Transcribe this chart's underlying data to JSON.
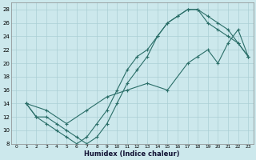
{
  "xlabel": "Humidex (Indice chaleur)",
  "bg_color": "#cce8ec",
  "line_color": "#2a6e68",
  "grid_color": "#aacfd4",
  "xlim": [
    -0.5,
    23.5
  ],
  "ylim": [
    8,
    29
  ],
  "xticks": [
    0,
    1,
    2,
    3,
    4,
    5,
    6,
    7,
    8,
    9,
    10,
    11,
    12,
    13,
    14,
    15,
    16,
    17,
    18,
    19,
    20,
    21,
    22,
    23
  ],
  "yticks": [
    8,
    10,
    12,
    14,
    16,
    18,
    20,
    22,
    24,
    26,
    28
  ],
  "line1_x": [
    1,
    2,
    3,
    4,
    5,
    6,
    7,
    8,
    9,
    10,
    11,
    12,
    13,
    14,
    15,
    16,
    17,
    18,
    19,
    20,
    21,
    22,
    23
  ],
  "line1_y": [
    14,
    12,
    11,
    10,
    9,
    8,
    9,
    11,
    13,
    16,
    19,
    21,
    22,
    24,
    26,
    27,
    28,
    28,
    26,
    25,
    24,
    23,
    21
  ],
  "line2_x": [
    1,
    2,
    3,
    4,
    5,
    6,
    7,
    8,
    9,
    10,
    11,
    12,
    13,
    14,
    15,
    16,
    17,
    18,
    19,
    20,
    21,
    22,
    23
  ],
  "line2_y": [
    14,
    12,
    12,
    11,
    10,
    9,
    8,
    9,
    11,
    14,
    17,
    19,
    21,
    24,
    26,
    27,
    28,
    28,
    27,
    26,
    25,
    23,
    21
  ],
  "line3_x": [
    1,
    3,
    5,
    7,
    9,
    11,
    13,
    15,
    17,
    18,
    19,
    20,
    21,
    22,
    23
  ],
  "line3_y": [
    14,
    13,
    11,
    13,
    15,
    16,
    17,
    16,
    20,
    21,
    22,
    20,
    23,
    25,
    21
  ]
}
